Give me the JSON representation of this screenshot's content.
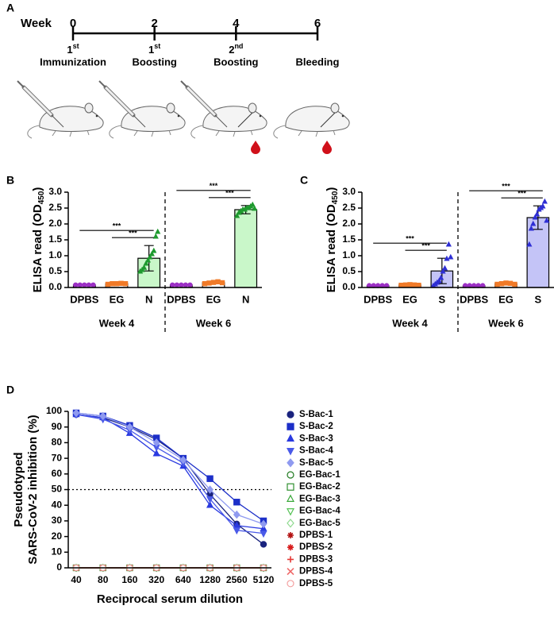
{
  "chart_data": [
    {
      "type": "timeline",
      "panel": "A",
      "axis_label": "Week",
      "xlim": [
        0,
        6
      ],
      "xticks": [
        0,
        2,
        4,
        6
      ],
      "events": [
        {
          "week": 0,
          "ordinal": "1",
          "suffix": "st",
          "label": "Immunization"
        },
        {
          "week": 2,
          "ordinal": "1",
          "suffix": "st",
          "label": "Boosting"
        },
        {
          "week": 4,
          "ordinal": "2",
          "suffix": "nd",
          "label": "Boosting"
        },
        {
          "week": 6,
          "label": "Bleeding"
        }
      ]
    },
    {
      "type": "bar",
      "panel": "B",
      "ylabel": "ELISA read (OD",
      "ylabel_sub": "450",
      "ylabel_end": ")",
      "categories": [
        "DPBS",
        "EG",
        "N",
        "DPBS",
        "EG",
        "N"
      ],
      "groups": [
        "Week 4",
        "Week 6"
      ],
      "values": [
        0.08,
        0.12,
        0.92,
        0.08,
        0.15,
        2.45
      ],
      "errors": [
        0.01,
        0.02,
        0.4,
        0.01,
        0.03,
        0.13
      ],
      "points": [
        [
          0.08,
          0.08,
          0.08,
          0.08,
          0.08
        ],
        [
          0.1,
          0.12,
          0.12,
          0.13,
          0.12
        ],
        [
          0.5,
          0.55,
          0.62,
          0.75,
          0.85,
          0.95,
          1.05,
          1.15,
          1.6,
          1.75
        ],
        [
          0.08,
          0.08,
          0.08,
          0.08,
          0.08
        ],
        [
          0.12,
          0.14,
          0.16,
          0.18,
          0.15
        ],
        [
          2.25,
          2.35,
          2.4,
          2.45,
          2.45,
          2.5,
          2.5,
          2.55,
          2.6,
          2.48
        ]
      ],
      "point_colors": [
        "#9b2fc4",
        "#f07a28",
        "#1e9a2e",
        "#9b2fc4",
        "#f07a28",
        "#1e9a2e"
      ],
      "markers": [
        "circle",
        "square",
        "triangle",
        "circle",
        "square",
        "triangle"
      ],
      "bar_fills": [
        "#ffffff",
        "#ffffff",
        "#c9f7c9",
        "#ffffff",
        "#ffffff",
        "#c9f7c9"
      ],
      "ylim": [
        0,
        3
      ],
      "yticks": [
        {
          "value": 0,
          "label": "0.0"
        },
        {
          "value": 0.5,
          "label": "0.5"
        },
        {
          "value": 1,
          "label": "1.0"
        },
        {
          "value": 1.5,
          "label": "1.5"
        },
        {
          "value": 2,
          "label": "2.0"
        },
        {
          "value": 2.5,
          "label": "2.5"
        },
        {
          "value": 3,
          "label": "3.0"
        }
      ],
      "annotations": [
        {
          "text": "***",
          "pair": [
            0,
            2
          ]
        },
        {
          "text": "***",
          "pair": [
            1,
            2
          ]
        },
        {
          "text": "***",
          "pair": [
            3,
            5
          ]
        },
        {
          "text": "***",
          "pair": [
            4,
            5
          ]
        }
      ]
    },
    {
      "type": "bar",
      "panel": "C",
      "ylabel": "ELISA read (OD",
      "ylabel_sub": "450",
      "ylabel_end": ")",
      "categories": [
        "DPBS",
        "EG",
        "S",
        "DPBS",
        "EG",
        "S"
      ],
      "groups": [
        "Week 4",
        "Week 6"
      ],
      "values": [
        0.06,
        0.08,
        0.52,
        0.06,
        0.12,
        2.2
      ],
      "errors": [
        0.01,
        0.01,
        0.4,
        0.01,
        0.02,
        0.37
      ],
      "points": [
        [
          0.06,
          0.06,
          0.06,
          0.06,
          0.06
        ],
        [
          0.07,
          0.08,
          0.09,
          0.08,
          0.07
        ],
        [
          0.05,
          0.1,
          0.15,
          0.2,
          0.3,
          0.5,
          0.6,
          0.9,
          1.35,
          0.95
        ],
        [
          0.06,
          0.06,
          0.06,
          0.06,
          0.06
        ],
        [
          0.1,
          0.12,
          0.14,
          0.13,
          0.1
        ],
        [
          1.35,
          1.85,
          2.0,
          2.2,
          2.3,
          2.45,
          2.5,
          2.55,
          2.7,
          2.1
        ]
      ],
      "point_colors": [
        "#9b2fc4",
        "#f07a28",
        "#2f2fd4",
        "#9b2fc4",
        "#f07a28",
        "#2f2fd4"
      ],
      "markers": [
        "circle",
        "square",
        "triangle",
        "circle",
        "square",
        "triangle"
      ],
      "bar_fills": [
        "#ffffff",
        "#ffffff",
        "#c4c4f7",
        "#ffffff",
        "#ffffff",
        "#c4c4f7"
      ],
      "ylim": [
        0,
        3
      ],
      "yticks": [
        {
          "value": 0,
          "label": "0.0"
        },
        {
          "value": 0.5,
          "label": "0.5"
        },
        {
          "value": 1,
          "label": "1.0"
        },
        {
          "value": 1.5,
          "label": "1.5"
        },
        {
          "value": 2,
          "label": "2.0"
        },
        {
          "value": 2.5,
          "label": "2.5"
        },
        {
          "value": 3,
          "label": "3.0"
        }
      ],
      "annotations": [
        {
          "text": "***",
          "pair": [
            0,
            2
          ]
        },
        {
          "text": "***",
          "pair": [
            1,
            2
          ]
        },
        {
          "text": "***",
          "pair": [
            3,
            5
          ]
        },
        {
          "text": "***",
          "pair": [
            4,
            5
          ]
        }
      ]
    },
    {
      "type": "line",
      "panel": "D",
      "ylabel": [
        "Pseudotyped",
        "SARS-CoV-2 inhibition (%)"
      ],
      "xlabel": "Reciprocal serum dilution",
      "categories": [
        "40",
        "80",
        "160",
        "320",
        "640",
        "1280",
        "2560",
        "5120"
      ],
      "ylim": [
        0,
        100
      ],
      "yticks": [
        0,
        10,
        20,
        30,
        40,
        50,
        60,
        70,
        80,
        90,
        100
      ],
      "hline": 50,
      "series": [
        {
          "name": "S-Bac-1",
          "color": "#1a237e",
          "marker": "circle",
          "filled": true,
          "values": [
            98,
            96,
            90,
            82,
            70,
            47,
            28,
            15
          ]
        },
        {
          "name": "S-Bac-2",
          "color": "#1c2fc8",
          "marker": "square",
          "filled": true,
          "values": [
            99,
            97,
            91,
            83,
            70,
            57,
            42,
            30
          ]
        },
        {
          "name": "S-Bac-3",
          "color": "#2a3ae0",
          "marker": "triangle",
          "filled": true,
          "values": [
            98,
            96,
            86,
            73,
            65,
            40,
            27,
            25
          ]
        },
        {
          "name": "S-Bac-4",
          "color": "#4a5ae8",
          "marker": "down",
          "filled": true,
          "values": [
            98,
            95,
            88,
            77,
            67,
            44,
            24,
            22
          ]
        },
        {
          "name": "S-Bac-5",
          "color": "#8f9af0",
          "marker": "diamond",
          "filled": true,
          "values": [
            99,
            97,
            90,
            80,
            69,
            50,
            34,
            28
          ]
        },
        {
          "name": "EG-Bac-1",
          "color": "#1f7a1f",
          "marker": "circle",
          "filled": false,
          "values": [
            0,
            0,
            0,
            0,
            0,
            0,
            0,
            0
          ]
        },
        {
          "name": "EG-Bac-2",
          "color": "#2f8f2f",
          "marker": "square",
          "filled": false,
          "values": [
            0,
            0,
            0,
            0,
            0,
            0,
            0,
            0
          ]
        },
        {
          "name": "EG-Bac-3",
          "color": "#3aa83a",
          "marker": "triangle",
          "filled": false,
          "values": [
            0,
            0,
            0,
            0,
            0,
            0,
            0,
            0
          ]
        },
        {
          "name": "EG-Bac-4",
          "color": "#55c255",
          "marker": "down",
          "filled": false,
          "values": [
            0,
            0,
            0,
            0,
            0,
            0,
            0,
            0
          ]
        },
        {
          "name": "EG-Bac-5",
          "color": "#8ed98e",
          "marker": "diamond",
          "filled": false,
          "values": [
            0,
            0,
            0,
            0,
            0,
            0,
            0,
            0
          ]
        },
        {
          "name": "DPBS-1",
          "color": "#b31212",
          "marker": "star",
          "filled": true,
          "values": [
            0,
            0,
            0,
            0,
            0,
            0,
            0,
            0
          ]
        },
        {
          "name": "DPBS-2",
          "color": "#d81b1b",
          "marker": "star",
          "filled": true,
          "values": [
            0,
            0,
            0,
            0,
            0,
            0,
            0,
            0
          ]
        },
        {
          "name": "DPBS-3",
          "color": "#e53935",
          "marker": "plus",
          "filled": true,
          "values": [
            0,
            0,
            0,
            0,
            0,
            0,
            0,
            0
          ]
        },
        {
          "name": "DPBS-4",
          "color": "#ef6a6a",
          "marker": "cross",
          "filled": true,
          "values": [
            0,
            0,
            0,
            0,
            0,
            0,
            0,
            0
          ]
        },
        {
          "name": "DPBS-5",
          "color": "#f4a0a0",
          "marker": "circle",
          "filled": false,
          "values": [
            0,
            0,
            0,
            0,
            0,
            0,
            0,
            0
          ]
        }
      ]
    }
  ]
}
